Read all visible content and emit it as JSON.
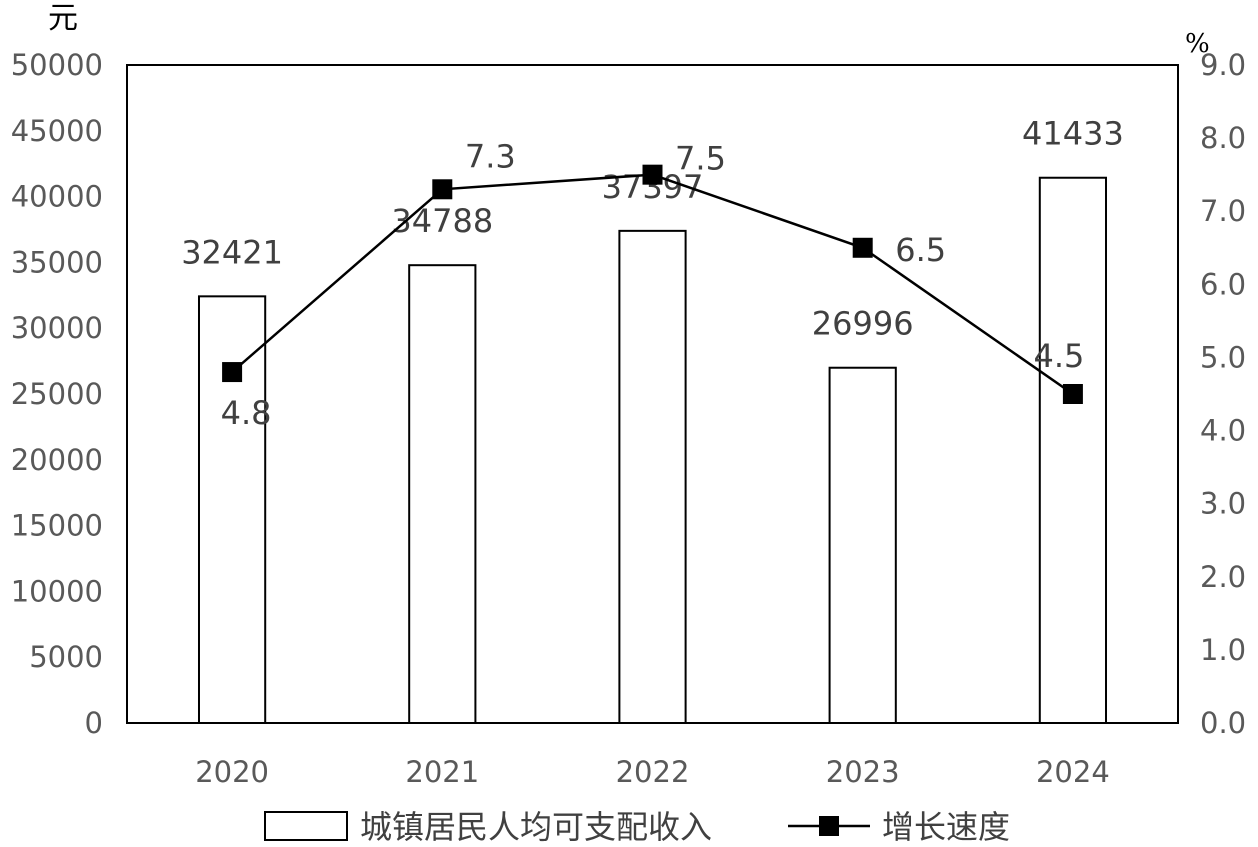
{
  "chart_data": {
    "type": "bar",
    "categories": [
      "2020",
      "2021",
      "2022",
      "2023",
      "2024"
    ],
    "series": [
      {
        "name": "城镇居民人均可支配收入",
        "type": "bar",
        "axis": "left",
        "values": [
          32421,
          34788,
          37397,
          26996,
          41433
        ],
        "labels": [
          "32421",
          "34788",
          "37397",
          "26996",
          "41433"
        ],
        "color": "#ffffff",
        "stroke": "#000000"
      },
      {
        "name": "增长速度",
        "type": "line",
        "axis": "right",
        "values": [
          4.8,
          7.3,
          7.5,
          6.5,
          4.5
        ],
        "labels": [
          "4.8",
          "7.3",
          "7.5",
          "6.5",
          "4.5"
        ],
        "color": "#000000",
        "marker": "square"
      }
    ],
    "y_left": {
      "unit": "元",
      "ylim": [
        0,
        50000
      ],
      "ticks": [
        "0",
        "5000",
        "10000",
        "15000",
        "20000",
        "25000",
        "30000",
        "35000",
        "40000",
        "45000",
        "50000"
      ]
    },
    "y_right": {
      "unit": "%",
      "ylim": [
        0,
        9
      ],
      "ticks": [
        "0.0",
        "1.0",
        "2.0",
        "3.0",
        "4.0",
        "5.0",
        "6.0",
        "7.0",
        "8.0",
        "9.0"
      ]
    },
    "grid": false,
    "legend": "bottom"
  }
}
